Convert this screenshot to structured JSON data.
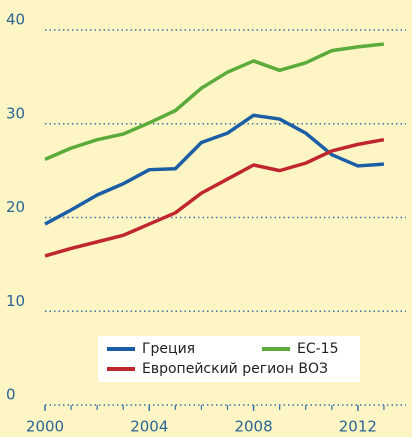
{
  "chart_data": {
    "type": "line",
    "x": [
      2000,
      2001,
      2002,
      2003,
      2004,
      2005,
      2006,
      2007,
      2008,
      2009,
      2010,
      2011,
      2012,
      2013
    ],
    "series": [
      {
        "name": "Греция",
        "color": "#1b5ea6",
        "values": [
          19.3,
          20.8,
          22.4,
          23.6,
          25.1,
          25.2,
          28.0,
          29.0,
          30.9,
          30.5,
          29.0,
          26.7,
          25.5,
          25.7
        ]
      },
      {
        "name": "ЕС-15",
        "color": "#5aab3a",
        "values": [
          26.2,
          27.4,
          28.3,
          28.9,
          30.1,
          31.4,
          33.8,
          35.5,
          36.7,
          35.7,
          36.5,
          37.8,
          38.2,
          38.5
        ]
      },
      {
        "name": "Европейский регион ВОЗ",
        "color": "#c0262d",
        "values": [
          15.9,
          16.7,
          17.4,
          18.1,
          19.3,
          20.5,
          22.6,
          24.1,
          25.6,
          25.0,
          25.8,
          27.1,
          27.8,
          28.3
        ]
      }
    ],
    "xlim": [
      2000,
      2014
    ],
    "xticks": [
      2000,
      2004,
      2008,
      2012
    ],
    "xminorticks": [
      2001,
      2002,
      2003,
      2005,
      2006,
      2007,
      2009,
      2010,
      2011,
      2013
    ],
    "ylim": [
      0,
      40
    ],
    "yticks": [
      0,
      10,
      20,
      30,
      40
    ],
    "grid": true
  }
}
